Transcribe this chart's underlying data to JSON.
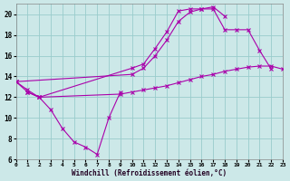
{
  "xlabel": "Windchill (Refroidissement éolien,°C)",
  "bg_color": "#cce8e8",
  "grid_color": "#99cccc",
  "line_color": "#aa00aa",
  "xlim": [
    0,
    23
  ],
  "ylim": [
    6,
    21
  ],
  "xticks": [
    0,
    1,
    2,
    3,
    4,
    5,
    6,
    7,
    8,
    9,
    10,
    11,
    12,
    13,
    14,
    15,
    16,
    17,
    18,
    19,
    20,
    21,
    22,
    23
  ],
  "yticks": [
    6,
    8,
    10,
    12,
    14,
    16,
    18,
    20
  ],
  "curve_valley_x": [
    0,
    1,
    2,
    3,
    4,
    5,
    6,
    7,
    8,
    9
  ],
  "curve_valley_y": [
    13.5,
    12.5,
    12.0,
    10.8,
    9.0,
    7.7,
    7.2,
    6.5,
    10.0,
    12.5
  ],
  "curve_upper1_x": [
    0,
    1,
    2,
    10,
    11,
    12,
    13,
    14,
    15,
    16,
    17,
    18
  ],
  "curve_upper1_y": [
    13.5,
    12.7,
    12.0,
    14.8,
    15.2,
    16.7,
    18.3,
    20.3,
    20.5,
    20.5,
    20.7,
    19.8
  ],
  "curve_upper2_x": [
    0,
    10,
    11,
    12,
    13,
    14,
    15,
    16,
    17,
    18,
    19,
    20,
    21,
    22
  ],
  "curve_upper2_y": [
    13.5,
    14.2,
    14.8,
    16.0,
    17.5,
    19.3,
    20.2,
    20.5,
    20.5,
    18.5,
    18.5,
    18.5,
    16.5,
    14.7
  ],
  "curve_lower_x": [
    1,
    2,
    9,
    10,
    11,
    12,
    13,
    14,
    15,
    16,
    17,
    18,
    19,
    20,
    21,
    22,
    23
  ],
  "curve_lower_y": [
    12.5,
    12.0,
    12.3,
    12.5,
    12.7,
    12.9,
    13.1,
    13.4,
    13.7,
    14.0,
    14.2,
    14.5,
    14.7,
    14.9,
    15.0,
    15.0,
    14.7
  ]
}
